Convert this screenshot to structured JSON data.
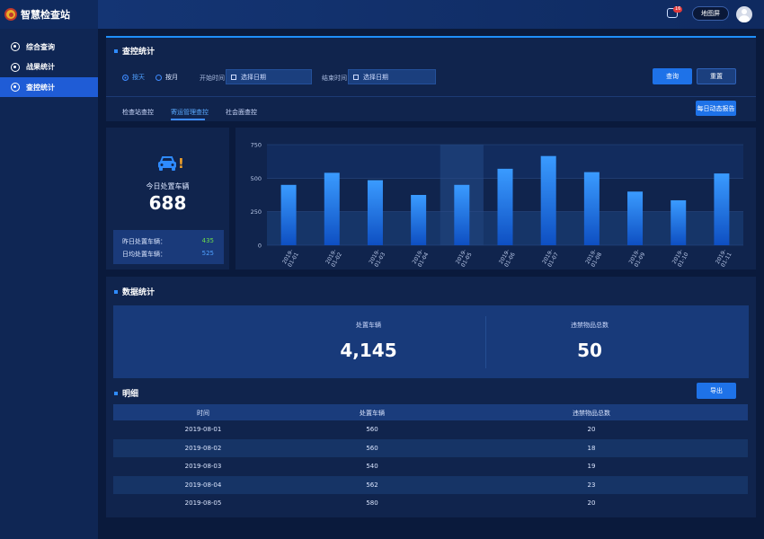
{
  "app": {
    "title": "智慧检查站"
  },
  "sidebar": {
    "items": [
      {
        "label": "综合查询"
      },
      {
        "label": "战果统计"
      },
      {
        "label": "查控统计"
      }
    ]
  },
  "header": {
    "msg_count": "16",
    "map_btn": "地图屏"
  },
  "query_panel": {
    "title": "查控统计",
    "radio_day": "按天",
    "radio_month": "按月",
    "start_label": "开始时间",
    "end_label": "结束时间",
    "start_placeholder": "选择日期",
    "end_placeholder": "选择日期",
    "search_btn": "查询",
    "reset_btn": "重置",
    "tabs": [
      {
        "label": "检查站查控"
      },
      {
        "label": "寄运管理查控"
      },
      {
        "label": "社会面查控"
      }
    ],
    "report_btn": "每日动态报告"
  },
  "today_card": {
    "label": "今日处置车辆",
    "value": "688",
    "yesterday_label": "昨日处置车辆：",
    "yesterday_value": "435",
    "avg_label": "日均处置车辆：",
    "avg_value": "525",
    "colors": {
      "yesterday": "#6bdc4c",
      "avg": "#4fa0ff"
    }
  },
  "chart_data": {
    "type": "bar",
    "categories": [
      "2019-01-01",
      "2019-01-02",
      "2019-01-03",
      "2019-01-04",
      "2019-01-05",
      "2019-01-06",
      "2019-01-07",
      "2019-01-08",
      "2019-01-09",
      "2019-01-10",
      "2019-01-11"
    ],
    "values": [
      450,
      540,
      485,
      375,
      450,
      570,
      665,
      545,
      400,
      335,
      535
    ],
    "yticks": [
      0,
      250,
      500,
      750
    ],
    "ylim": [
      0,
      750
    ],
    "highlight_index": 4,
    "grid": true,
    "colors": {
      "bar_top": "#3a9bff",
      "bar_bottom": "#0e4fc2"
    }
  },
  "data_stats": {
    "title": "数据统计",
    "vehicles_label": "处置车辆",
    "vehicles_value": "4,145",
    "contraband_label": "违禁物品总数",
    "contraband_value": "50"
  },
  "detail": {
    "title": "明细",
    "export_btn": "导出",
    "columns": [
      "时间",
      "处置车辆",
      "违禁物品总数"
    ],
    "rows": [
      [
        "2019-08-01",
        "560",
        "20"
      ],
      [
        "2019-08-02",
        "560",
        "18"
      ],
      [
        "2019-08-03",
        "540",
        "19"
      ],
      [
        "2019-08-04",
        "562",
        "23"
      ],
      [
        "2019-08-05",
        "580",
        "20"
      ]
    ]
  }
}
